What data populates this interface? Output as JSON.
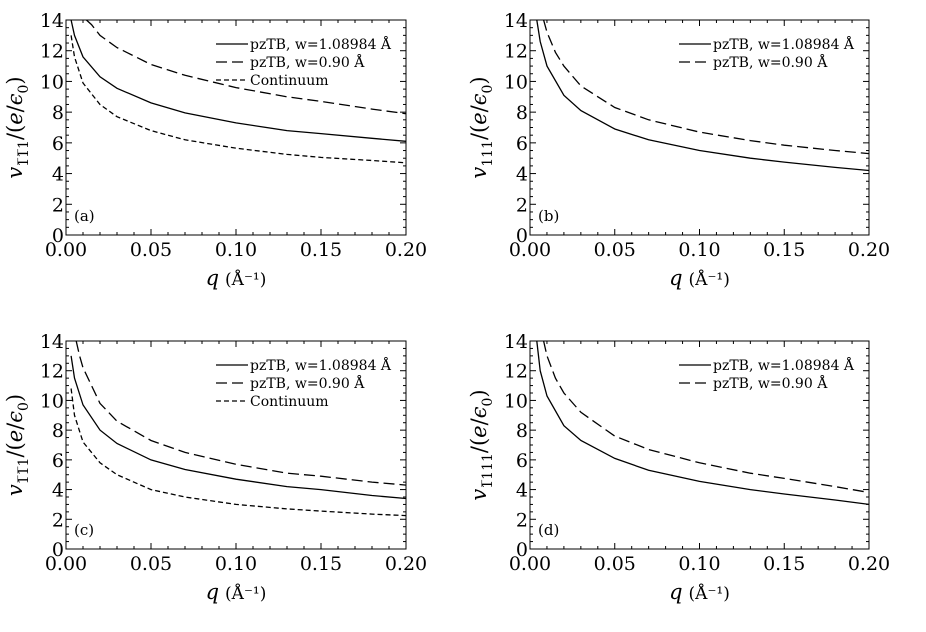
{
  "chart_data": [
    {
      "type": "line",
      "panel_label": "(a)",
      "xlabel": "q",
      "xlabel_unit": "(Å⁻¹)",
      "ylabel_sub": "1̅1̅1",
      "ylim": [
        0,
        14
      ],
      "xlim": [
        0,
        0.2
      ],
      "x_ticks": [
        "0.00",
        "0.05",
        "0.10",
        "0.15",
        "0.20"
      ],
      "y_ticks": [
        "0",
        "2",
        "4",
        "6",
        "8",
        "10",
        "12",
        "14"
      ],
      "series": [
        {
          "name": "pzTB, w=1.08984 Å",
          "style": "solid",
          "x": [
            0.003,
            0.005,
            0.01,
            0.02,
            0.03,
            0.05,
            0.07,
            0.1,
            0.13,
            0.15,
            0.18,
            0.2
          ],
          "y": [
            14.0,
            13.0,
            11.6,
            10.3,
            9.55,
            8.6,
            7.95,
            7.3,
            6.8,
            6.6,
            6.3,
            6.1
          ]
        },
        {
          "name": "pzTB, w=0.90 Å",
          "style": "longdash",
          "x": [
            0.012,
            0.015,
            0.02,
            0.03,
            0.05,
            0.07,
            0.1,
            0.13,
            0.15,
            0.18,
            0.2
          ],
          "y": [
            14.0,
            13.7,
            13.0,
            12.2,
            11.1,
            10.4,
            9.6,
            9.0,
            8.7,
            8.2,
            7.9
          ]
        },
        {
          "name": "Continuum",
          "style": "shortdash",
          "x": [
            0.003,
            0.005,
            0.01,
            0.02,
            0.03,
            0.05,
            0.07,
            0.1,
            0.13,
            0.15,
            0.18,
            0.2
          ],
          "y": [
            13.0,
            11.6,
            9.9,
            8.5,
            7.7,
            6.8,
            6.2,
            5.65,
            5.25,
            5.05,
            4.85,
            4.7
          ]
        }
      ]
    },
    {
      "type": "line",
      "panel_label": "(b)",
      "xlabel": "q",
      "xlabel_unit": "(Å⁻¹)",
      "ylabel_sub": "111",
      "ylim": [
        0,
        14
      ],
      "xlim": [
        0,
        0.2
      ],
      "x_ticks": [
        "0.00",
        "0.05",
        "0.10",
        "0.15",
        "0.20"
      ],
      "y_ticks": [
        "0",
        "2",
        "4",
        "6",
        "8",
        "10",
        "12",
        "14"
      ],
      "series": [
        {
          "name": "pzTB, w=1.08984 Å",
          "style": "solid",
          "x": [
            0.004,
            0.006,
            0.01,
            0.02,
            0.03,
            0.05,
            0.07,
            0.1,
            0.13,
            0.15,
            0.18,
            0.2
          ],
          "y": [
            14.0,
            12.6,
            11.0,
            9.1,
            8.1,
            6.9,
            6.2,
            5.5,
            5.0,
            4.75,
            4.4,
            4.2
          ]
        },
        {
          "name": "pzTB, w=0.90 Å",
          "style": "longdash",
          "x": [
            0.008,
            0.01,
            0.015,
            0.02,
            0.03,
            0.05,
            0.07,
            0.1,
            0.13,
            0.15,
            0.18,
            0.2
          ],
          "y": [
            14.0,
            13.2,
            11.9,
            11.0,
            9.7,
            8.3,
            7.5,
            6.7,
            6.15,
            5.85,
            5.5,
            5.3
          ]
        }
      ]
    },
    {
      "type": "line",
      "panel_label": "(c)",
      "xlabel": "q",
      "xlabel_unit": "(Å⁻¹)",
      "ylabel_sub": "1̅1̅1",
      "ylim": [
        0,
        14
      ],
      "xlim": [
        0,
        0.2
      ],
      "x_ticks": [
        "0.00",
        "0.05",
        "0.10",
        "0.15",
        "0.20"
      ],
      "y_ticks": [
        "0",
        "2",
        "4",
        "6",
        "8",
        "10",
        "12",
        "14"
      ],
      "series": [
        {
          "name": "pzTB, w=1.08984 Å",
          "style": "solid",
          "x": [
            0.003,
            0.005,
            0.01,
            0.02,
            0.03,
            0.05,
            0.07,
            0.1,
            0.13,
            0.15,
            0.18,
            0.2
          ],
          "y": [
            13.0,
            11.5,
            9.7,
            8.0,
            7.1,
            6.0,
            5.35,
            4.7,
            4.2,
            4.0,
            3.6,
            3.4
          ]
        },
        {
          "name": "pzTB, w=0.90 Å",
          "style": "longdash",
          "x": [
            0.006,
            0.008,
            0.01,
            0.02,
            0.03,
            0.05,
            0.07,
            0.1,
            0.13,
            0.15,
            0.18,
            0.2
          ],
          "y": [
            14.0,
            13.0,
            12.2,
            9.8,
            8.6,
            7.3,
            6.5,
            5.7,
            5.1,
            4.9,
            4.5,
            4.3
          ]
        },
        {
          "name": "Continuum",
          "style": "shortdash",
          "x": [
            0.003,
            0.005,
            0.01,
            0.02,
            0.03,
            0.05,
            0.07,
            0.1,
            0.13,
            0.15,
            0.18,
            0.2
          ],
          "y": [
            10.8,
            9.0,
            7.2,
            5.8,
            5.0,
            4.0,
            3.5,
            3.0,
            2.7,
            2.55,
            2.35,
            2.25
          ]
        }
      ]
    },
    {
      "type": "line",
      "panel_label": "(d)",
      "xlabel": "q",
      "xlabel_unit": "(Å⁻¹)",
      "ylabel_sub": "1̅111",
      "ylim": [
        0,
        14
      ],
      "xlim": [
        0,
        0.2
      ],
      "x_ticks": [
        "0.00",
        "0.05",
        "0.10",
        "0.15",
        "0.20"
      ],
      "y_ticks": [
        "0",
        "2",
        "4",
        "6",
        "8",
        "10",
        "12",
        "14"
      ],
      "series": [
        {
          "name": "pzTB, w=1.08984 Å",
          "style": "solid",
          "x": [
            0.004,
            0.006,
            0.01,
            0.02,
            0.03,
            0.05,
            0.07,
            0.1,
            0.13,
            0.15,
            0.18,
            0.2
          ],
          "y": [
            14.0,
            12.0,
            10.3,
            8.3,
            7.3,
            6.1,
            5.3,
            4.55,
            4.0,
            3.7,
            3.3,
            3.0
          ]
        },
        {
          "name": "pzTB, w=0.90 Å",
          "style": "longdash",
          "x": [
            0.008,
            0.01,
            0.015,
            0.02,
            0.03,
            0.05,
            0.07,
            0.1,
            0.13,
            0.15,
            0.18,
            0.2
          ],
          "y": [
            14.0,
            13.0,
            11.5,
            10.5,
            9.2,
            7.6,
            6.7,
            5.8,
            5.1,
            4.75,
            4.2,
            3.8
          ]
        }
      ]
    }
  ],
  "ylabel_text": {
    "v": "v",
    "mid": "/(",
    "e": "e",
    "slash": "/",
    "eps": "ϵ",
    "zero": "0",
    "close": ")"
  },
  "colors": {
    "line": "#000000",
    "background": "#ffffff"
  }
}
